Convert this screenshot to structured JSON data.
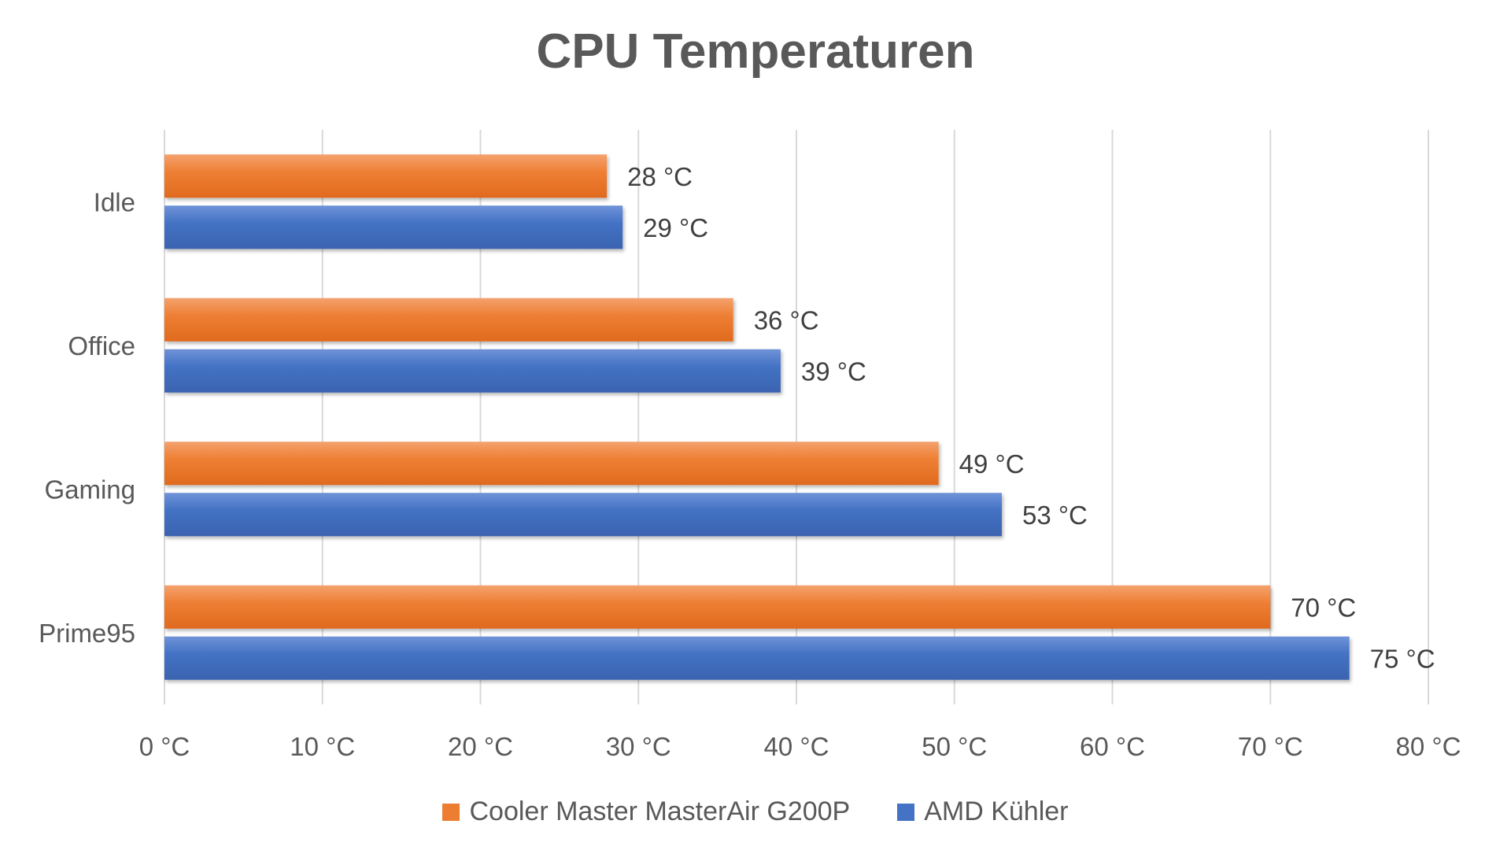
{
  "chart_data": {
    "type": "bar",
    "orientation": "horizontal",
    "title": "CPU Temperaturen",
    "categories": [
      "Idle",
      "Office",
      "Gaming",
      "Prime95"
    ],
    "series": [
      {
        "name": "Cooler Master MasterAir G200P",
        "color": "#ED7D31",
        "values": [
          28,
          36,
          49,
          70
        ],
        "labels": [
          "28 °C",
          "36 °C",
          "49 °C",
          "70 °C"
        ]
      },
      {
        "name": "AMD Kühler",
        "color": "#4472C4",
        "values": [
          29,
          39,
          53,
          75
        ],
        "labels": [
          "29 °C",
          "39 °C",
          "53 °C",
          "75 °C"
        ]
      }
    ],
    "x_ticks": [
      0,
      10,
      20,
      30,
      40,
      50,
      60,
      70,
      80
    ],
    "x_tick_labels": [
      "0 °C",
      "10 °C",
      "20 °C",
      "30 °C",
      "40 °C",
      "50 °C",
      "60 °C",
      "70 °C",
      "80 °C"
    ],
    "xlim": [
      0,
      80
    ],
    "grid": true,
    "legend": "bottom"
  }
}
